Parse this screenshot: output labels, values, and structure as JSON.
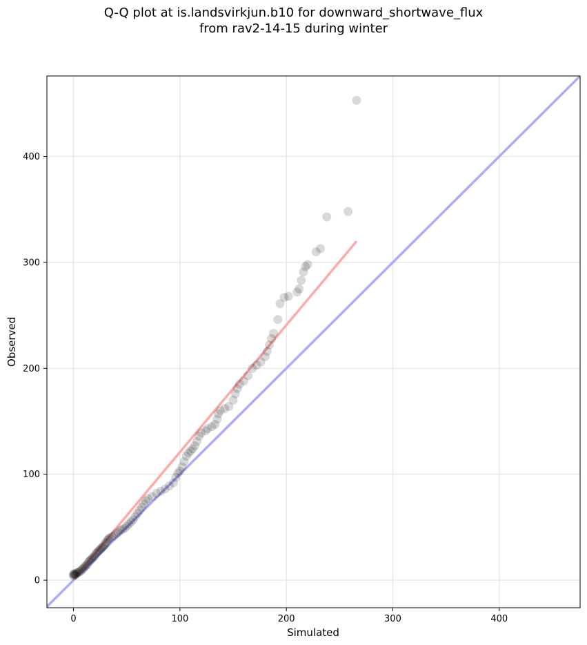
{
  "title_line1": "Q-Q plot at is.landsvirkjun.b10 for downward_shortwave_flux",
  "title_line2": "from rav2-14-15 during winter",
  "chart_data": {
    "type": "scatter",
    "title": "Q-Q plot at is.landsvirkjun.b10 for downward_shortwave_flux from rav2-14-15 during winter",
    "xlabel": "Simulated",
    "ylabel": "Observed",
    "xlim": [
      -25,
      476
    ],
    "ylim": [
      -26,
      476
    ],
    "xticks": [
      0,
      100,
      200,
      300,
      400
    ],
    "yticks": [
      0,
      100,
      200,
      300,
      400
    ],
    "grid": true,
    "reference_line": {
      "color": "#aaaaff",
      "from": [
        -25,
        -25
      ],
      "to": [
        476,
        476
      ]
    },
    "fit_line": {
      "color": "#ffaaaa",
      "from": [
        0,
        1
      ],
      "to": [
        266,
        320
      ]
    },
    "colors": {
      "points": "#000000",
      "reference": "#aaaaff",
      "fit": "#ffaaaa",
      "low_tint_red": "#cc0000",
      "low_tint_blue": "#000099"
    },
    "points": [
      [
        0,
        4
      ],
      [
        0,
        5
      ],
      [
        0,
        6
      ],
      [
        1,
        5
      ],
      [
        1,
        6
      ],
      [
        2,
        5
      ],
      [
        2,
        6
      ],
      [
        3,
        7
      ],
      [
        4,
        7
      ],
      [
        5,
        8
      ],
      [
        6,
        8
      ],
      [
        7,
        9
      ],
      [
        8,
        10
      ],
      [
        9,
        11
      ],
      [
        10,
        12
      ],
      [
        11,
        13
      ],
      [
        12,
        14
      ],
      [
        13,
        15
      ],
      [
        14,
        17
      ],
      [
        15,
        18
      ],
      [
        16,
        19
      ],
      [
        17,
        20
      ],
      [
        18,
        21
      ],
      [
        19,
        22
      ],
      [
        20,
        23
      ],
      [
        21,
        25
      ],
      [
        22,
        26
      ],
      [
        23,
        27
      ],
      [
        24,
        28
      ],
      [
        25,
        29
      ],
      [
        26,
        30
      ],
      [
        27,
        31
      ],
      [
        28,
        32
      ],
      [
        29,
        33
      ],
      [
        30,
        35
      ],
      [
        31,
        36
      ],
      [
        32,
        38
      ],
      [
        33,
        39
      ],
      [
        34,
        40
      ],
      [
        36,
        41
      ],
      [
        38,
        42
      ],
      [
        40,
        44
      ],
      [
        42,
        45
      ],
      [
        44,
        47
      ],
      [
        46,
        48
      ],
      [
        48,
        49
      ],
      [
        50,
        51
      ],
      [
        52,
        53
      ],
      [
        54,
        55
      ],
      [
        56,
        57
      ],
      [
        58,
        60
      ],
      [
        60,
        63
      ],
      [
        62,
        66
      ],
      [
        64,
        69
      ],
      [
        66,
        72
      ],
      [
        68,
        75
      ],
      [
        70,
        77
      ],
      [
        74,
        79
      ],
      [
        78,
        82
      ],
      [
        82,
        84
      ],
      [
        86,
        86
      ],
      [
        90,
        89
      ],
      [
        94,
        92
      ],
      [
        96,
        97
      ],
      [
        98,
        101
      ],
      [
        100,
        103
      ],
      [
        102,
        107
      ],
      [
        104,
        112
      ],
      [
        106,
        117
      ],
      [
        108,
        120
      ],
      [
        110,
        122
      ],
      [
        112,
        124
      ],
      [
        114,
        127
      ],
      [
        116,
        131
      ],
      [
        118,
        136
      ],
      [
        120,
        139
      ],
      [
        124,
        141
      ],
      [
        126,
        143
      ],
      [
        130,
        145
      ],
      [
        133,
        147
      ],
      [
        135,
        152
      ],
      [
        136,
        157
      ],
      [
        138,
        160
      ],
      [
        142,
        162
      ],
      [
        146,
        164
      ],
      [
        150,
        170
      ],
      [
        152,
        176
      ],
      [
        154,
        181
      ],
      [
        156,
        185
      ],
      [
        160,
        188
      ],
      [
        164,
        193
      ],
      [
        168,
        200
      ],
      [
        172,
        203
      ],
      [
        176,
        206
      ],
      [
        180,
        211
      ],
      [
        182,
        216
      ],
      [
        184,
        222
      ],
      [
        186,
        228
      ],
      [
        188,
        233
      ],
      [
        192,
        246
      ],
      [
        194,
        261
      ],
      [
        198,
        267
      ],
      [
        202,
        268
      ],
      [
        210,
        272
      ],
      [
        212,
        275
      ],
      [
        214,
        283
      ],
      [
        216,
        291
      ],
      [
        218,
        296
      ],
      [
        220,
        298
      ],
      [
        228,
        310
      ],
      [
        232,
        313
      ],
      [
        238,
        343
      ],
      [
        258,
        348
      ],
      [
        266,
        453
      ]
    ]
  }
}
